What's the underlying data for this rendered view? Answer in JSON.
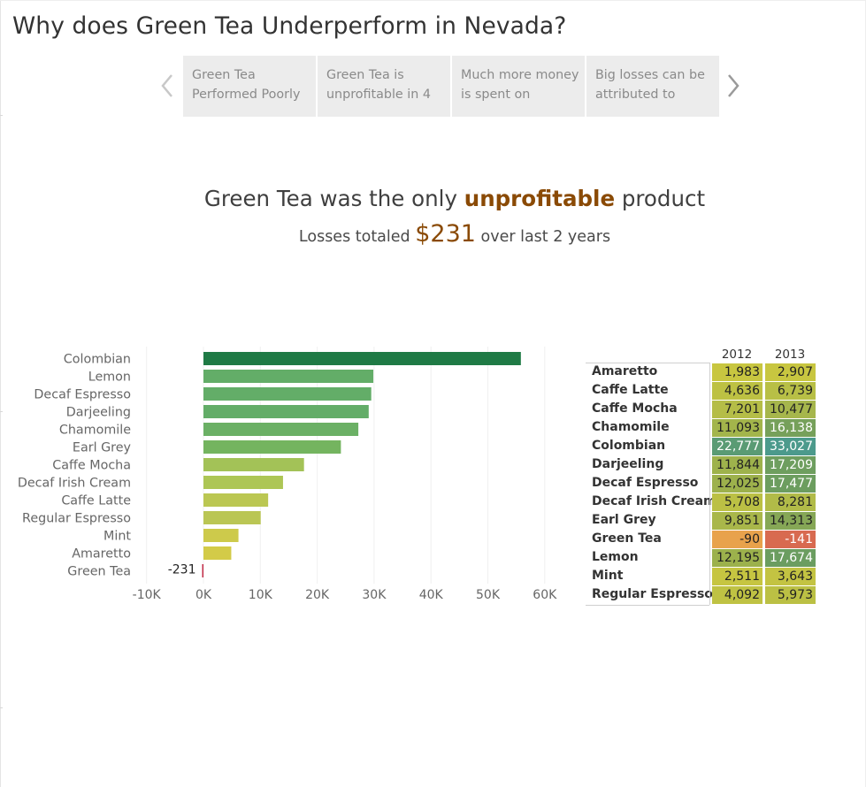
{
  "page": {
    "title": "Why does Green Tea Underperform in Nevada?"
  },
  "story_nav": {
    "points": [
      {
        "label": "Green Tea\nPerformed Poorly",
        "active": true
      },
      {
        "label": "Green Tea is\nunprofitable in 4",
        "active": false
      },
      {
        "label": "Much more money\nis spent on",
        "active": false
      },
      {
        "label": "Big losses can be\nattributed to",
        "active": false
      }
    ],
    "prev_icon": "chevron-left-icon",
    "next_icon": "chevron-right-icon"
  },
  "headline": {
    "before": "Green Tea was the only ",
    "highlight": "unprofitable",
    "after": " product"
  },
  "subheadline": {
    "before": "Losses totaled ",
    "amount": "$231",
    "after": " over last 2 years"
  },
  "colors": {
    "highlight": "#8a4a05",
    "tab_active": "#d6d6d6",
    "tab_inactive": "#ececec"
  },
  "chart_data": [
    {
      "type": "bar",
      "orientation": "horizontal",
      "categories": [
        "Colombian",
        "Lemon",
        "Decaf Espresso",
        "Darjeeling",
        "Chamomile",
        "Earl Grey",
        "Caffe Mocha",
        "Decaf Irish Cream",
        "Caffe Latte",
        "Regular Espresso",
        "Mint",
        "Amaretto",
        "Green Tea"
      ],
      "values": [
        55804,
        29869,
        29502,
        29053,
        27231,
        24164,
        17678,
        13989,
        11375,
        10065,
        6154,
        4890,
        -231
      ],
      "xlim": [
        -10000,
        60000
      ],
      "x_ticks": [
        "-10K",
        "0K",
        "10K",
        "20K",
        "30K",
        "40K",
        "50K",
        "60K"
      ],
      "data_labels": [
        {
          "category": "Green Tea",
          "text": "-231"
        }
      ],
      "grid": true,
      "colors": [
        "#1f7a45",
        "#63ad68",
        "#63ad68",
        "#63ad68",
        "#6bb065",
        "#74b45f",
        "#a3c257",
        "#adc655",
        "#bbc752",
        "#bac654",
        "#cdca4b",
        "#d3cb48",
        "#c22a46"
      ]
    },
    {
      "type": "table",
      "columns": [
        "2012",
        "2013"
      ],
      "rows": [
        {
          "label": "Amaretto",
          "values": [
            "1,983",
            "2,907"
          ],
          "colors": [
            "#c8c640",
            "#c8c640"
          ]
        },
        {
          "label": "Caffe Latte",
          "values": [
            "4,636",
            "6,739"
          ],
          "colors": [
            "#bdc143",
            "#b8bf46"
          ]
        },
        {
          "label": "Caffe Mocha",
          "values": [
            "7,201",
            "10,477"
          ],
          "colors": [
            "#b5bd47",
            "#a6b64c"
          ]
        },
        {
          "label": "Chamomile",
          "values": [
            "11,093",
            "16,138"
          ],
          "colors": [
            "#a3b54b",
            "#76a05a"
          ]
        },
        {
          "label": "Colombian",
          "values": [
            "22,777",
            "33,027"
          ],
          "colors": [
            "#5a9b74",
            "#4c9a8c"
          ]
        },
        {
          "label": "Darjeeling",
          "values": [
            "11,844",
            "17,209"
          ],
          "colors": [
            "#9eb24c",
            "#6e9e5f"
          ]
        },
        {
          "label": "Decaf Espresso",
          "values": [
            "12,025",
            "17,477"
          ],
          "colors": [
            "#9db14c",
            "#6c9d5f"
          ]
        },
        {
          "label": "Decaf Irish Cream",
          "values": [
            "5,708",
            "8,281"
          ],
          "colors": [
            "#bbc044",
            "#b1bb48"
          ]
        },
        {
          "label": "Earl Grey",
          "values": [
            "9,851",
            "14,313"
          ],
          "colors": [
            "#a9b74a",
            "#86a756"
          ]
        },
        {
          "label": "Green Tea",
          "values": [
            "-90",
            "-141"
          ],
          "colors": [
            "#e8a24c",
            "#d86a50"
          ]
        },
        {
          "label": "Lemon",
          "values": [
            "12,195",
            "17,674"
          ],
          "colors": [
            "#9cb14c",
            "#6b9d60"
          ]
        },
        {
          "label": "Mint",
          "values": [
            "2,511",
            "3,643"
          ],
          "colors": [
            "#c6c541",
            "#c3c342"
          ]
        },
        {
          "label": "Regular Espresso",
          "values": [
            "4,092",
            "5,973"
          ],
          "colors": [
            "#bfc243",
            "#bbc044"
          ]
        }
      ]
    }
  ]
}
